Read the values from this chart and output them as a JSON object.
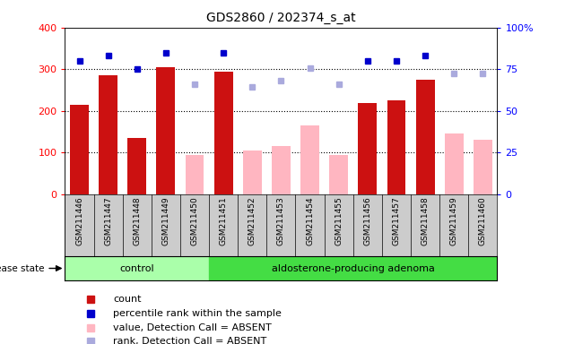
{
  "title": "GDS2860 / 202374_s_at",
  "samples": [
    "GSM211446",
    "GSM211447",
    "GSM211448",
    "GSM211449",
    "GSM211450",
    "GSM211451",
    "GSM211452",
    "GSM211453",
    "GSM211454",
    "GSM211455",
    "GSM211456",
    "GSM211457",
    "GSM211458",
    "GSM211459",
    "GSM211460"
  ],
  "count": [
    215,
    285,
    135,
    305,
    null,
    295,
    null,
    null,
    null,
    null,
    220,
    225,
    275,
    null,
    null
  ],
  "absent_value": [
    null,
    null,
    null,
    null,
    95,
    null,
    105,
    115,
    165,
    95,
    null,
    null,
    null,
    145,
    130
  ],
  "percentile_rank": [
    80,
    83,
    75,
    85,
    null,
    85,
    null,
    null,
    null,
    null,
    80,
    80,
    83,
    null,
    null
  ],
  "absent_rank": [
    null,
    null,
    null,
    null,
    265,
    null,
    258,
    272,
    302,
    265,
    null,
    null,
    null,
    290,
    290
  ],
  "control_count": 5,
  "group1_label": "control",
  "group2_label": "aldosterone-producing adenoma",
  "disease_state_label": "disease state",
  "ylim_left": [
    0,
    400
  ],
  "ylim_right": [
    0,
    100
  ],
  "yticks_left": [
    0,
    100,
    200,
    300,
    400
  ],
  "yticks_right": [
    0,
    25,
    50,
    75,
    100
  ],
  "bar_color_red": "#CC1111",
  "bar_color_pink": "#FFB6C1",
  "dot_color_blue": "#0000CC",
  "dot_color_lightblue": "#AAAADD",
  "group1_color": "#AAFFAA",
  "group2_color": "#44DD44",
  "legend_items": [
    "count",
    "percentile rank within the sample",
    "value, Detection Call = ABSENT",
    "rank, Detection Call = ABSENT"
  ],
  "legend_colors": [
    "#CC1111",
    "#0000CC",
    "#FFB6C1",
    "#AAAADD"
  ]
}
